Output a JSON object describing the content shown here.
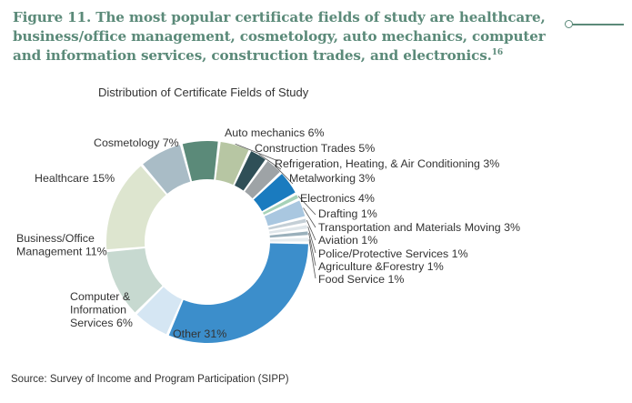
{
  "heading": {
    "text": "Figure 11. The most popular certificate fields of study are healthcare, business/office management, cosmetology, auto mechanics, computer and information services, construction trades, and electronics.",
    "footnote": "16"
  },
  "source": "Source: Survey of Income and Program Participation (SIPP)",
  "colors": {
    "heading": "#5b8a79",
    "text": "#333333",
    "leader": "#555555"
  },
  "chart_data": {
    "type": "pie",
    "subtype": "donut",
    "title": "Distribution of Certificate Fields of Study",
    "unit": "%",
    "slices": [
      {
        "name": "Auto mechanics",
        "value": 6,
        "label": "Auto mechanics 6%",
        "color": "#5b8a79"
      },
      {
        "name": "Construction Trades",
        "value": 5,
        "label": "Construction Trades 5%",
        "color": "#b7c6a3"
      },
      {
        "name": "Refrigeration, Heating, & Air Conditioning",
        "value": 3,
        "label": "Refrigeration, Heating, & Air Conditioning 3%",
        "color": "#2f4f57"
      },
      {
        "name": "Metalworking",
        "value": 3,
        "label": "Metalworking 3%",
        "color": "#9ea3a6"
      },
      {
        "name": "Electronics",
        "value": 4,
        "label": "Electronics 4%",
        "color": "#1a7bbf"
      },
      {
        "name": "Drafting",
        "value": 1,
        "label": "Drafting 1%",
        "color": "#a6d2b8"
      },
      {
        "name": "Transportation and Materials Moving",
        "value": 3,
        "label": "Transportation and Materials Moving 3%",
        "color": "#a9c7e0"
      },
      {
        "name": "Aviation",
        "value": 1,
        "label": "Aviation 1%",
        "color": "#c4cfd6"
      },
      {
        "name": "Police/Protective Services",
        "value": 1,
        "label": "Police/Protective Services 1%",
        "color": "#dfe6ea"
      },
      {
        "name": "Agriculture &Forestry",
        "value": 1,
        "label": "Agriculture &Forestry 1%",
        "color": "#9ab0bb"
      },
      {
        "name": "Food Service",
        "value": 1,
        "label": "Food Service 1%",
        "color": "#e6ecef"
      },
      {
        "name": "Other",
        "value": 31,
        "label": "Other 31%",
        "color": "#3c8ecb"
      },
      {
        "name": "Computer & Information Services",
        "value": 6,
        "label": "Computer & Information Services 6%",
        "color": "#d5e6f3"
      },
      {
        "name": "Business/Office Management",
        "value": 11,
        "label": "Business/Office Management 11%",
        "color": "#c7d9d0"
      },
      {
        "name": "Healthcare",
        "value": 15,
        "label": "Healthcare 15%",
        "color": "#dde5cf"
      },
      {
        "name": "Cosmetology",
        "value": 7,
        "label": "Cosmetology 7%",
        "color": "#a9bcc6"
      }
    ]
  }
}
